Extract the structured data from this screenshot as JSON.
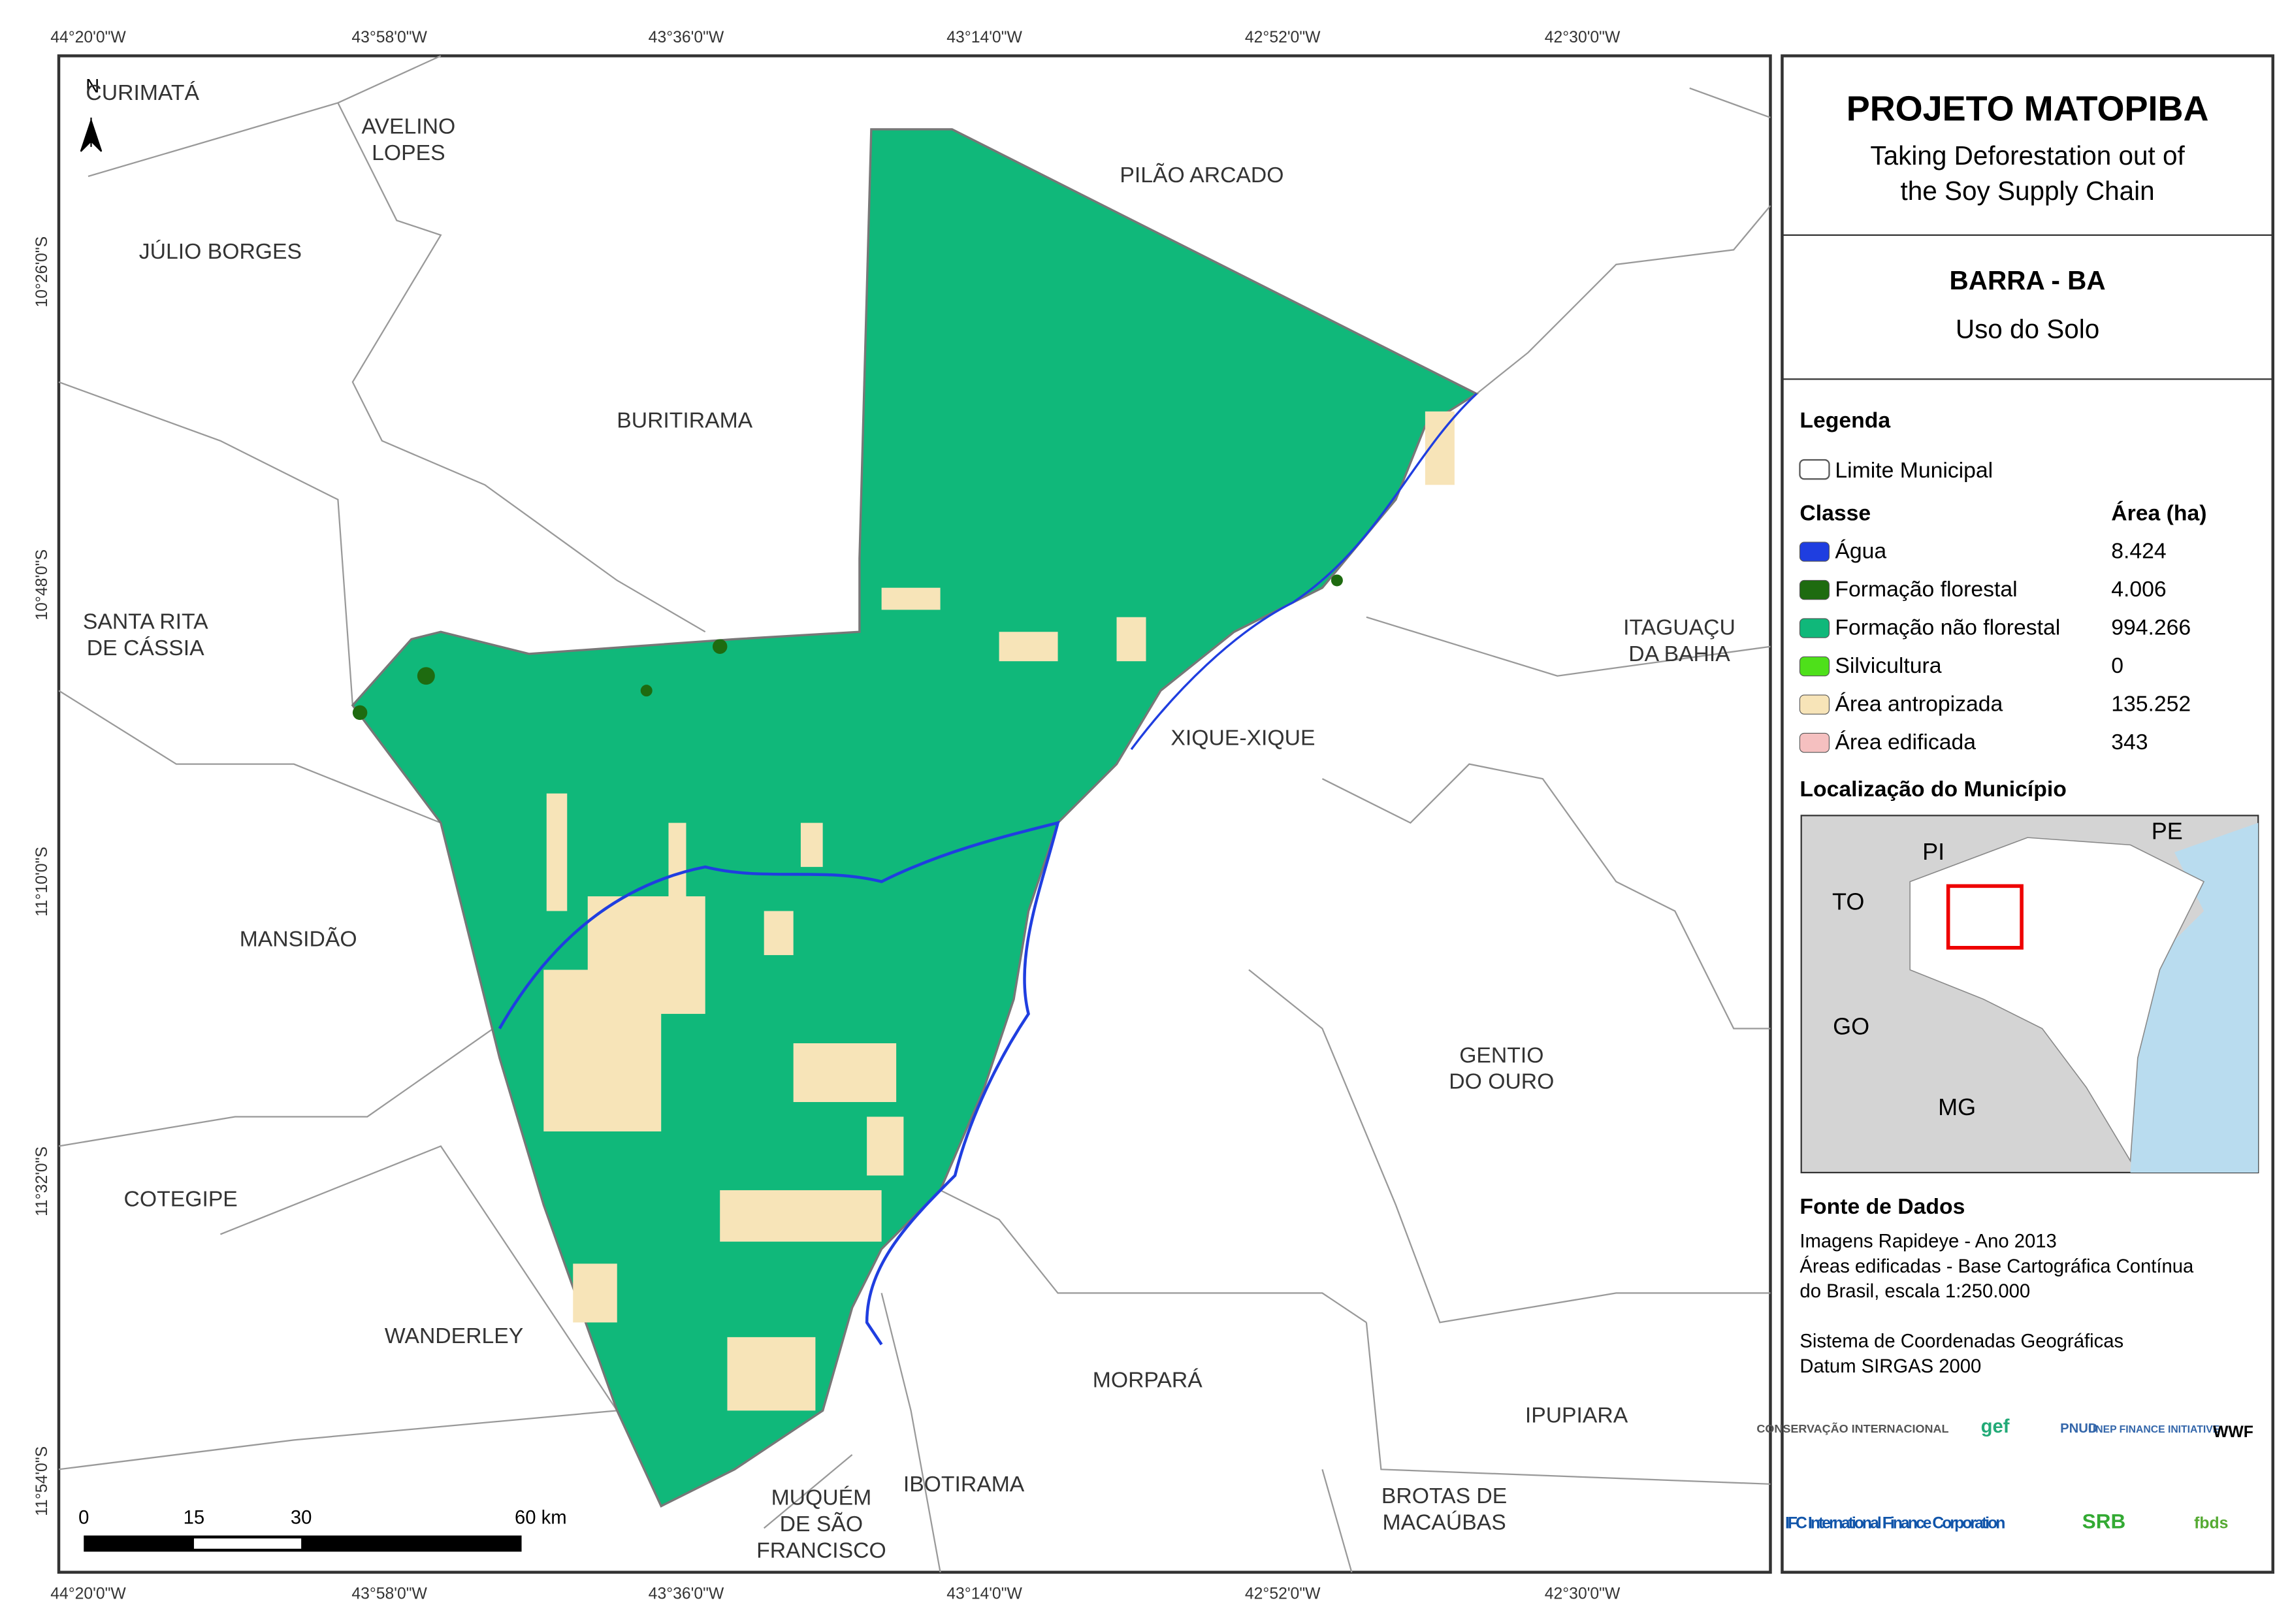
{
  "header": {
    "title": "PROJETO MATOPIBA",
    "subtitle_lines": [
      "Taking Deforestation out of",
      "the Soy Supply Chain"
    ],
    "municipality": "BARRA - BA",
    "theme": "Uso do Solo"
  },
  "legend": {
    "title": "Legenda",
    "boundary": "Limite Municipal",
    "class_header": "Classe",
    "area_header": "Área (ha)",
    "items": [
      {
        "name": "Água",
        "area": "8.424",
        "color": "#1f3ee0"
      },
      {
        "name": "Formação florestal",
        "area": "4.006",
        "color": "#1e6b10"
      },
      {
        "name": "Formação não florestal",
        "area": "994.266",
        "color": "#10b87a"
      },
      {
        "name": "Silvicultura",
        "area": "0",
        "color": "#4ee01a"
      },
      {
        "name": "Área antropizada",
        "area": "135.252",
        "color": "#f7e4b8"
      },
      {
        "name": "Área edificada",
        "area": "343",
        "color": "#f5c0c0"
      }
    ]
  },
  "location": {
    "title": "Localização do Município",
    "labels": [
      "PI",
      "PE",
      "TO",
      "GO",
      "MG"
    ]
  },
  "sources": {
    "title": "Fonte de Dados",
    "lines": [
      "Imagens Rapideye - Ano 2013",
      "Áreas edificadas - Base Cartográfica Contínua",
      "do Brasil, escala 1:250.000",
      "",
      "Sistema de Coordenadas Geográficas",
      "Datum SIRGAS 2000"
    ]
  },
  "logos": [
    "CONSERVAÇÃO INTERNACIONAL",
    "gef",
    "PNUD",
    "UNEP FINANCE INITIATIVE",
    "WWF",
    "IFC International Finance Corporation",
    "SRB",
    "fbds"
  ],
  "map": {
    "north": "N",
    "longitudes": [
      "44°20'0\"W",
      "43°58'0\"W",
      "43°36'0\"W",
      "43°14'0\"W",
      "42°52'0\"W",
      "42°30'0\"W"
    ],
    "latitudes": [
      "10°26'0\"S",
      "10°48'0\"S",
      "11°10'0\"S",
      "11°32'0\"S",
      "11°54'0\"S"
    ],
    "scale_labels": [
      "0",
      "15",
      "30",
      "60 km"
    ],
    "places": [
      "CURIMATÁ",
      "AVELINO\nLOPES",
      "JÚLIO BORGES",
      "PILÃO ARCADO",
      "BURITIRAMA",
      "SANTA RITA\nDE CÁSSIA",
      "ITAGUAÇU\nDA BAHIA",
      "XIQUE-XIQUE",
      "MANSIDÃO",
      "GENTIO\nDO OURO",
      "COTEGIPE",
      "WANDERLEY",
      "MORPARÁ",
      "IPUPIARA",
      "MUQUÉM\nDE SÃO\nFRANCISCO",
      "IBOTIRAMA",
      "BROTAS DE\nMACAÚBAS"
    ]
  }
}
